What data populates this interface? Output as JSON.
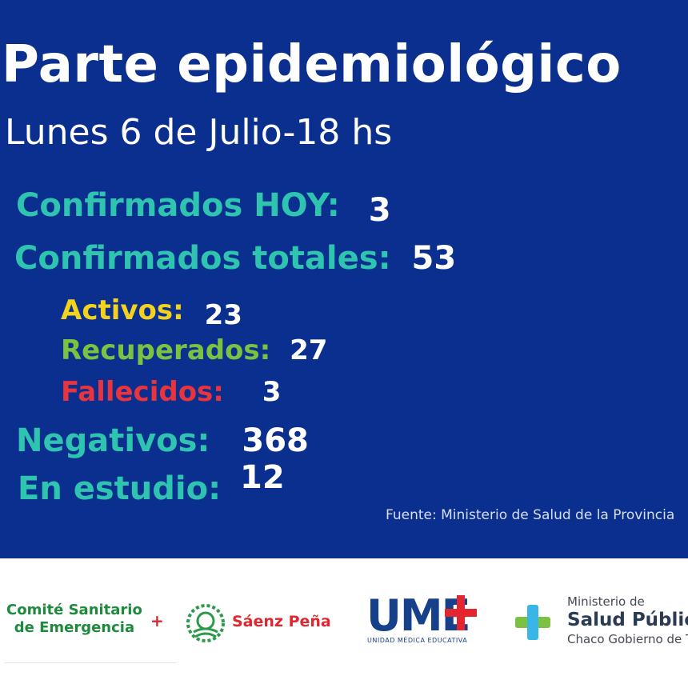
{
  "header": {
    "title": "Parte epidemiológico",
    "subtitle": "Lunes 6 de Julio-18 hs"
  },
  "stats": {
    "confirmados_hoy": {
      "label": "Confirmados HOY:",
      "value": "3"
    },
    "confirmados_totales": {
      "label": "Confirmados totales:",
      "value": "53"
    },
    "activos": {
      "label": "Activos:",
      "value": "23"
    },
    "recuperados": {
      "label": "Recuperados:",
      "value": "27"
    },
    "fallecidos": {
      "label": "Fallecidos:",
      "value": "3"
    },
    "negativos": {
      "label": "Negativos:",
      "value": "368"
    },
    "en_estudio": {
      "label": "En estudio:",
      "value": "12"
    }
  },
  "source": "Fuente: Ministerio de Salud de la Provincia",
  "logos": {
    "comite": {
      "line1": "Comité Sanitario",
      "line2": "de Emergencia",
      "plus": "+"
    },
    "saenz_pena": {
      "text": "Sáenz Peña"
    },
    "ume": {
      "main": "UME",
      "sub": "UNIDAD MÉDICA EDUCATIVA"
    },
    "ministerio": {
      "line1": "Ministerio de",
      "line2": "Salud Pública",
      "line3": "Chaco Gobierno de Todos"
    }
  },
  "colors": {
    "background": "#0a2f8f",
    "teal": "#2ec4b0",
    "yellow": "#f2d21e",
    "green": "#7cc242",
    "red": "#e8343c"
  }
}
